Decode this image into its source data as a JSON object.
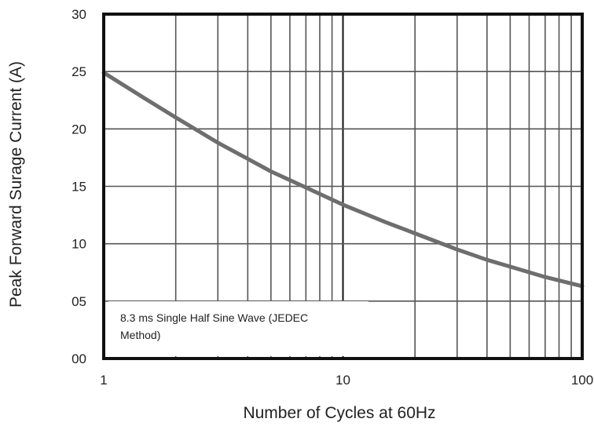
{
  "chart_data": {
    "type": "line",
    "title": "",
    "xlabel": "Number of Cycles at 60Hz",
    "ylabel": "Peak Forward Surage Current (A)",
    "x_scale": "log",
    "xlim": [
      1,
      100
    ],
    "ylim": [
      0,
      30
    ],
    "x_ticks": [
      1,
      10,
      100
    ],
    "x_tick_labels": [
      "1",
      "10",
      "100"
    ],
    "y_ticks": [
      0,
      5,
      10,
      15,
      20,
      25,
      30
    ],
    "y_tick_labels": [
      "00",
      "05",
      "10",
      "15",
      "20",
      "25",
      "30"
    ],
    "grid": true,
    "annotation_lines": [
      "8.3 ms Single Half Sine Wave (JEDEC",
      "Method)"
    ],
    "series": [
      {
        "color": "#6e6e6e",
        "x": [
          1,
          1.5,
          2,
          3,
          4,
          5,
          7,
          10,
          15,
          20,
          30,
          40,
          50,
          70,
          100
        ],
        "y": [
          24.9,
          22.6,
          21.0,
          18.8,
          17.4,
          16.3,
          14.9,
          13.4,
          11.9,
          10.9,
          9.5,
          8.6,
          8.0,
          7.1,
          6.3
        ]
      }
    ],
    "colors": {
      "frame": "#111111",
      "grid": "#555555",
      "background": "#ffffff"
    }
  }
}
